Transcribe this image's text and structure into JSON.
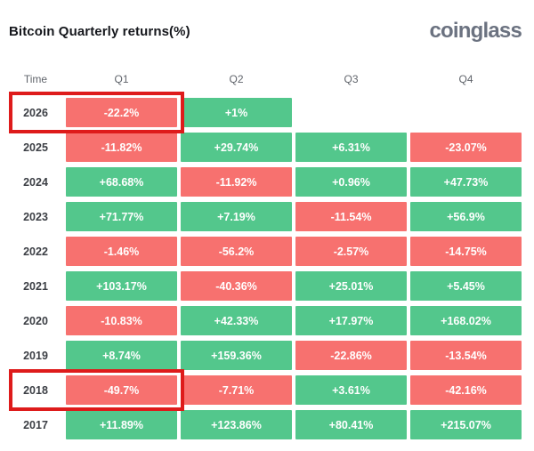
{
  "header": {
    "title": "Bitcoin Quarterly returns(%)",
    "logo": "coinglass"
  },
  "table": {
    "columns": [
      "Time",
      "Q1",
      "Q2",
      "Q3",
      "Q4"
    ],
    "rows": [
      {
        "year": "2026",
        "values": [
          "-22.2%",
          "+1%",
          "",
          ""
        ],
        "highlighted": true
      },
      {
        "year": "2025",
        "values": [
          "-11.82%",
          "+29.74%",
          "+6.31%",
          "-23.07%"
        ],
        "highlighted": false
      },
      {
        "year": "2024",
        "values": [
          "+68.68%",
          "-11.92%",
          "+0.96%",
          "+47.73%"
        ],
        "highlighted": false
      },
      {
        "year": "2023",
        "values": [
          "+71.77%",
          "+7.19%",
          "-11.54%",
          "+56.9%"
        ],
        "highlighted": false
      },
      {
        "year": "2022",
        "values": [
          "-1.46%",
          "-56.2%",
          "-2.57%",
          "-14.75%"
        ],
        "highlighted": false
      },
      {
        "year": "2021",
        "values": [
          "+103.17%",
          "-40.36%",
          "+25.01%",
          "+5.45%"
        ],
        "highlighted": false
      },
      {
        "year": "2020",
        "values": [
          "-10.83%",
          "+42.33%",
          "+17.97%",
          "+168.02%"
        ],
        "highlighted": false
      },
      {
        "year": "2019",
        "values": [
          "+8.74%",
          "+159.36%",
          "-22.86%",
          "-13.54%"
        ],
        "highlighted": false
      },
      {
        "year": "2018",
        "values": [
          "-49.7%",
          "-7.71%",
          "+3.61%",
          "-42.16%"
        ],
        "highlighted": true
      },
      {
        "year": "2017",
        "values": [
          "+11.89%",
          "+123.86%",
          "+80.41%",
          "+215.07%"
        ],
        "highlighted": false
      }
    ]
  },
  "colors": {
    "positive": "#53c78c",
    "negative": "#f7716f",
    "highlight_border": "#de1b1b",
    "year_text": "#3c3f45",
    "header_text": "#61656c",
    "logo_text": "#6b7280"
  },
  "chart_data": {
    "type": "heatmap",
    "title": "Bitcoin Quarterly returns(%)",
    "rows": [
      "2026",
      "2025",
      "2024",
      "2023",
      "2022",
      "2021",
      "2020",
      "2019",
      "2018",
      "2017"
    ],
    "columns": [
      "Q1",
      "Q2",
      "Q3",
      "Q4"
    ],
    "values": [
      [
        -22.2,
        1,
        null,
        null
      ],
      [
        -11.82,
        29.74,
        6.31,
        -23.07
      ],
      [
        68.68,
        -11.92,
        0.96,
        47.73
      ],
      [
        71.77,
        7.19,
        -11.54,
        56.9
      ],
      [
        -1.46,
        -56.2,
        -2.57,
        -14.75
      ],
      [
        103.17,
        -40.36,
        25.01,
        5.45
      ],
      [
        -10.83,
        42.33,
        17.97,
        168.02
      ],
      [
        8.74,
        159.36,
        -22.86,
        -13.54
      ],
      [
        -49.7,
        -7.71,
        3.61,
        -42.16
      ],
      [
        11.89,
        123.86,
        80.41,
        215.07
      ]
    ],
    "unit": "%",
    "positive_color": "#53c78c",
    "negative_color": "#f7716f",
    "highlighted_rows": [
      "2026",
      "2018"
    ],
    "legend": "none",
    "grid": "off"
  }
}
